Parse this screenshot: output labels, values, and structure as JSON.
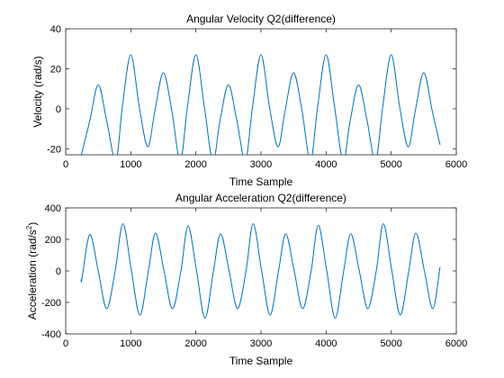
{
  "chart_data": [
    {
      "type": "line",
      "title": "Angular Velocity Q2(difference)",
      "xlabel": "Time Sample",
      "ylabel": "Velocity (rad/s)",
      "xlim": [
        0,
        6000
      ],
      "ylim": [
        -23,
        40
      ],
      "xticks": [
        0,
        1000,
        2000,
        3000,
        4000,
        5000,
        6000
      ],
      "yticks": [
        -20,
        0,
        20,
        40
      ],
      "color": "#0072BD",
      "series": [
        {
          "x": [
            240,
            370,
            500,
            630,
            770,
            870,
            1000,
            1130,
            1260,
            1370,
            1500,
            1630,
            1760,
            1870,
            2000,
            2130,
            2260,
            2370,
            2500,
            2630,
            2760,
            2870,
            3000,
            3130,
            3260,
            3370,
            3500,
            3630,
            3760,
            3870,
            4000,
            4130,
            4260,
            4370,
            4500,
            4630,
            4760,
            4870,
            5000,
            5130,
            5260,
            5370,
            5500,
            5630,
            5750
          ],
          "y": [
            -23,
            -6,
            12,
            -6,
            -26,
            1,
            27,
            1,
            -19,
            -1,
            18,
            -1,
            -26,
            1,
            27,
            1,
            -26,
            -6,
            12,
            -6,
            -26,
            1,
            27,
            1,
            -19,
            -1,
            18,
            -1,
            -26,
            1,
            27,
            1,
            -26,
            -6,
            12,
            -6,
            -26,
            1,
            27,
            1,
            -19,
            -1,
            18,
            -1,
            -18
          ]
        }
      ]
    },
    {
      "type": "line",
      "title": "Angular Acceleration Q2(difference)",
      "xlabel": "Time Sample",
      "ylabel": "Acceleration (rad/s",
      "ylabel_sup": "2",
      "ylabel_end": ")",
      "xlim": [
        0,
        6000
      ],
      "ylim": [
        -400,
        400
      ],
      "xticks": [
        0,
        1000,
        2000,
        3000,
        4000,
        5000,
        6000
      ],
      "yticks": [
        -400,
        -200,
        0,
        200,
        400
      ],
      "color": "#0072BD",
      "series": [
        {
          "x": [
            240,
            250,
            370,
            500,
            630,
            760,
            880,
            1010,
            1140,
            1270,
            1380,
            1510,
            1640,
            1770,
            1880,
            2010,
            2140,
            2270,
            2380,
            2510,
            2640,
            2770,
            2880,
            3010,
            3140,
            3270,
            3380,
            3510,
            3640,
            3770,
            3880,
            4010,
            4140,
            4270,
            4380,
            4510,
            4640,
            4770,
            4880,
            5010,
            5140,
            5270,
            5380,
            5510,
            5640,
            5750
          ],
          "y": [
            -50,
            -50,
            230,
            0,
            -240,
            0,
            300,
            0,
            -280,
            0,
            240,
            0,
            -240,
            0,
            285,
            0,
            -300,
            0,
            235,
            0,
            -240,
            0,
            300,
            0,
            -280,
            0,
            235,
            0,
            -240,
            0,
            290,
            0,
            -300,
            0,
            235,
            0,
            -240,
            0,
            300,
            0,
            -280,
            0,
            240,
            0,
            -240,
            25
          ]
        }
      ]
    }
  ]
}
